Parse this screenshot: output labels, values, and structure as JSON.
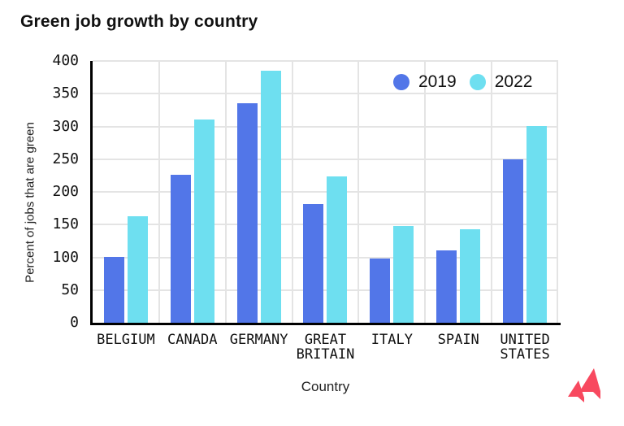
{
  "title": "Green job growth by country",
  "chart_data": {
    "type": "bar",
    "title": "Green job growth by country",
    "xlabel": "Country",
    "ylabel": "Percent of jobs that are green",
    "ylim": [
      0,
      400
    ],
    "yticks": [
      0,
      50,
      100,
      150,
      200,
      250,
      300,
      350,
      400
    ],
    "grid": true,
    "legend_position": "top-right-inside",
    "categories": [
      {
        "label": "BELGIUM",
        "lines": [
          "BELGIUM"
        ]
      },
      {
        "label": "CANADA",
        "lines": [
          "CANADA"
        ]
      },
      {
        "label": "GERMANY",
        "lines": [
          "GERMANY"
        ]
      },
      {
        "label": "GREAT BRITAIN",
        "lines": [
          "GREAT",
          "BRITAIN"
        ]
      },
      {
        "label": "ITALY",
        "lines": [
          "ITALY"
        ]
      },
      {
        "label": "SPAIN",
        "lines": [
          "SPAIN"
        ]
      },
      {
        "label": "UNITED STATES",
        "lines": [
          "UNITED",
          "STATES"
        ]
      }
    ],
    "series": [
      {
        "name": "2019",
        "color": "#5276E8",
        "values": [
          101,
          226,
          335,
          182,
          98,
          111,
          250
        ]
      },
      {
        "name": "2022",
        "color": "#6EDFF0",
        "values": [
          163,
          310,
          385,
          224,
          148,
          143,
          301
        ]
      }
    ]
  },
  "colors": {
    "background": "#ffffff",
    "axis": "#000000",
    "grid": "#e4e4e4",
    "text": "#111111",
    "logo": "#F8495F"
  },
  "icons": {
    "logo": "brand-logomark-red-double-flag"
  }
}
